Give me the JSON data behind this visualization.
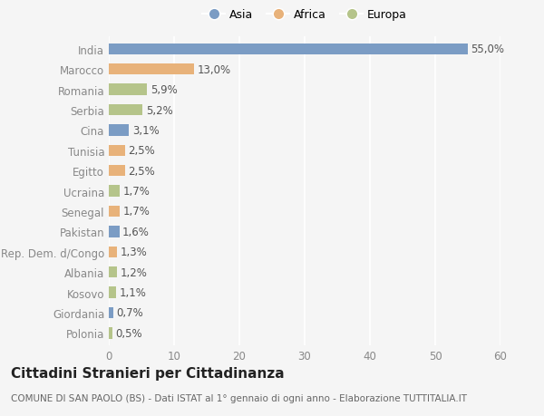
{
  "categories": [
    "India",
    "Marocco",
    "Romania",
    "Serbia",
    "Cina",
    "Tunisia",
    "Egitto",
    "Ucraina",
    "Senegal",
    "Pakistan",
    "Rep. Dem. d/Congo",
    "Albania",
    "Kosovo",
    "Giordania",
    "Polonia"
  ],
  "values": [
    55.0,
    13.0,
    5.9,
    5.2,
    3.1,
    2.5,
    2.5,
    1.7,
    1.7,
    1.6,
    1.3,
    1.2,
    1.1,
    0.7,
    0.5
  ],
  "regions": [
    "Asia",
    "Africa",
    "Europa",
    "Europa",
    "Asia",
    "Africa",
    "Africa",
    "Europa",
    "Africa",
    "Asia",
    "Africa",
    "Europa",
    "Europa",
    "Asia",
    "Europa"
  ],
  "colors": {
    "Asia": "#7b9cc4",
    "Africa": "#e8b27a",
    "Europa": "#b5c48a"
  },
  "legend_labels": [
    "Asia",
    "Africa",
    "Europa"
  ],
  "legend_colors": [
    "#7b9cc4",
    "#e8b27a",
    "#b5c48a"
  ],
  "title": "Cittadini Stranieri per Cittadinanza",
  "subtitle": "COMUNE DI SAN PAOLO (BS) - Dati ISTAT al 1° gennaio di ogni anno - Elaborazione TUTTITALIA.IT",
  "xlim": [
    0,
    60
  ],
  "xticks": [
    0,
    10,
    20,
    30,
    40,
    50,
    60
  ],
  "bar_height": 0.55,
  "background_color": "#f5f5f5",
  "grid_color": "#ffffff",
  "label_fontsize": 8.5,
  "tick_fontsize": 8.5,
  "title_fontsize": 11,
  "subtitle_fontsize": 7.5
}
